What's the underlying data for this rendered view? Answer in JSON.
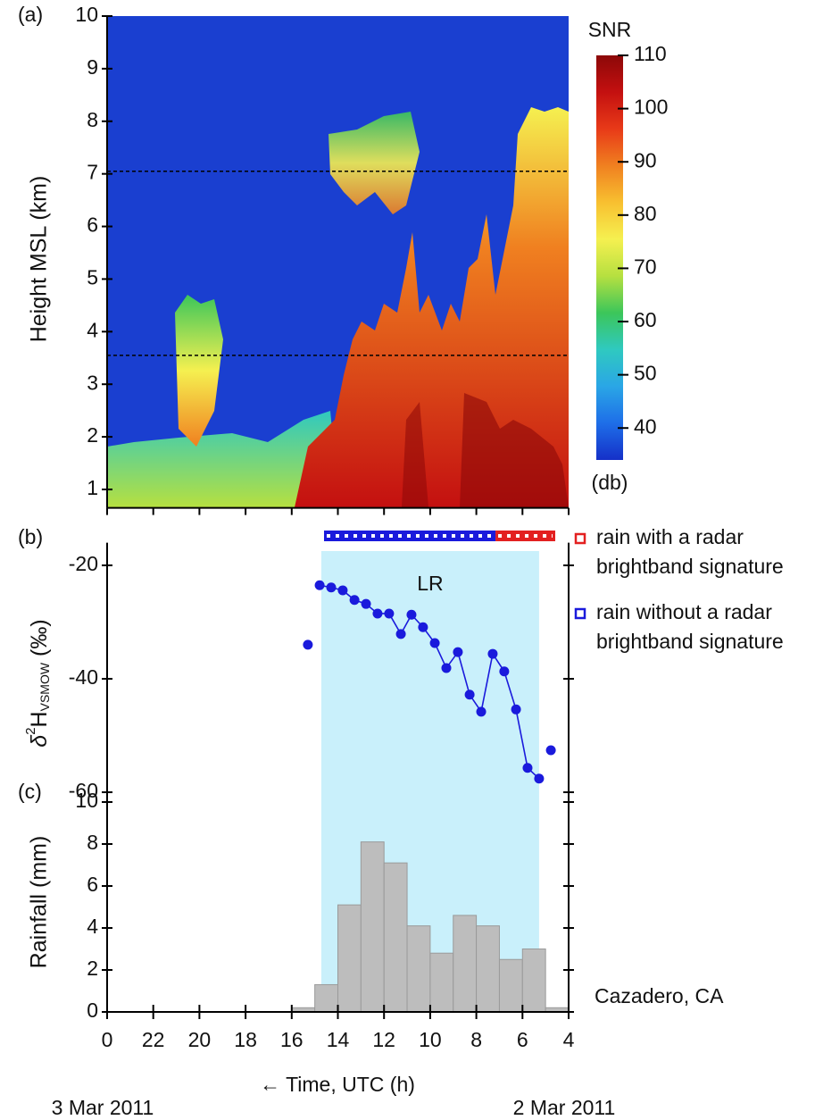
{
  "chart_data": [
    {
      "type": "heatmap",
      "panel_label": "(a)",
      "y_label": "Height MSL (km)",
      "ylim": [
        0.65,
        10
      ],
      "yticks": [
        1,
        2,
        3,
        4,
        5,
        6,
        7,
        8,
        9,
        10
      ],
      "xlim": [
        24,
        4
      ],
      "reference_lines": [
        7.05,
        3.55
      ],
      "colorbar": {
        "title": "SNR",
        "unit": "(db)",
        "lim": [
          34,
          110
        ],
        "ticks": [
          40,
          50,
          60,
          70,
          80,
          90,
          100,
          110
        ],
        "colors": [
          "#1530c8",
          "#1e6ee8",
          "#2aa6e6",
          "#2fc9c0",
          "#3cc65a",
          "#b6e040",
          "#f5f050",
          "#f8c030",
          "#f08020",
          "#e83a18",
          "#c41010",
          "#8c0808"
        ]
      }
    },
    {
      "type": "scatter",
      "panel_label": "(b)",
      "y_label": {
        "prefix": "δ",
        "sup": "2",
        "main": "H",
        "sub": "VSMOW",
        "suffix": " (‰)"
      },
      "ylim": [
        -64.5,
        -16
      ],
      "yticks": [
        -20,
        -40,
        -60
      ],
      "xlim": [
        24,
        4
      ],
      "x": [
        15.3,
        14.79,
        14.29,
        13.79,
        13.28,
        12.78,
        12.28,
        11.78,
        11.27,
        10.81,
        10.31,
        9.8,
        9.3,
        8.8,
        8.29,
        7.79,
        7.29,
        6.79,
        6.28,
        5.78,
        5.28,
        4.77
      ],
      "series": [
        {
          "style": "markers",
          "color": "#1a1adc",
          "values": [
            -34.0,
            null,
            null,
            null,
            null,
            null,
            null,
            null,
            null,
            null,
            null,
            null,
            null,
            null,
            null,
            null,
            null,
            null,
            null,
            null,
            null,
            -52.6
          ]
        },
        {
          "style": "line+markers",
          "color": "#1a1adc",
          "values": [
            null,
            -23.5,
            -23.9,
            -24.4,
            -26.1,
            -26.8,
            -28.5,
            -28.5,
            -32.1,
            -28.7,
            -30.9,
            -33.7,
            -38.1,
            -35.3,
            -42.8,
            -45.8,
            -35.6,
            -38.7,
            -45.4,
            -55.7,
            -57.6,
            null
          ]
        }
      ],
      "shaded_region": {
        "label": "LR",
        "x": [
          14.72,
          5.28
        ],
        "color": "#c9f0fb"
      },
      "rain_bars": [
        {
          "name_lines": [
            "rain with a radar",
            "brightband signature"
          ],
          "color": "#e32020",
          "x": [
            7.17,
            4.58
          ]
        },
        {
          "name_lines": [
            "rain without a radar",
            "brightband signature"
          ],
          "color": "#1a1adc",
          "x": [
            14.6,
            7.17
          ]
        }
      ]
    },
    {
      "type": "histogram",
      "panel_label": "(c)",
      "y_label": "Rainfall (mm)",
      "ylim": [
        0,
        10
      ],
      "yticks": [
        0,
        2,
        4,
        6,
        8,
        10
      ],
      "xlim": [
        24,
        4
      ],
      "xticks": [
        {
          "value": 24,
          "label": "0"
        },
        22,
        20,
        18,
        16,
        14,
        12,
        10,
        8,
        6,
        4
      ],
      "x_label": "← Time, UTC (h)",
      "bins": [
        16,
        15,
        14,
        13,
        12,
        11,
        10,
        9,
        8,
        7,
        6,
        5,
        4
      ],
      "values": [
        0.2,
        1.3,
        5.1,
        8.1,
        7.1,
        4.1,
        2.8,
        4.6,
        4.1,
        2.5,
        3.0,
        0.2
      ],
      "color": "#bdbdbd",
      "annotation": "Cazadero, CA",
      "date_labels": [
        "3 Mar 2011",
        "2 Mar 2011"
      ]
    }
  ]
}
